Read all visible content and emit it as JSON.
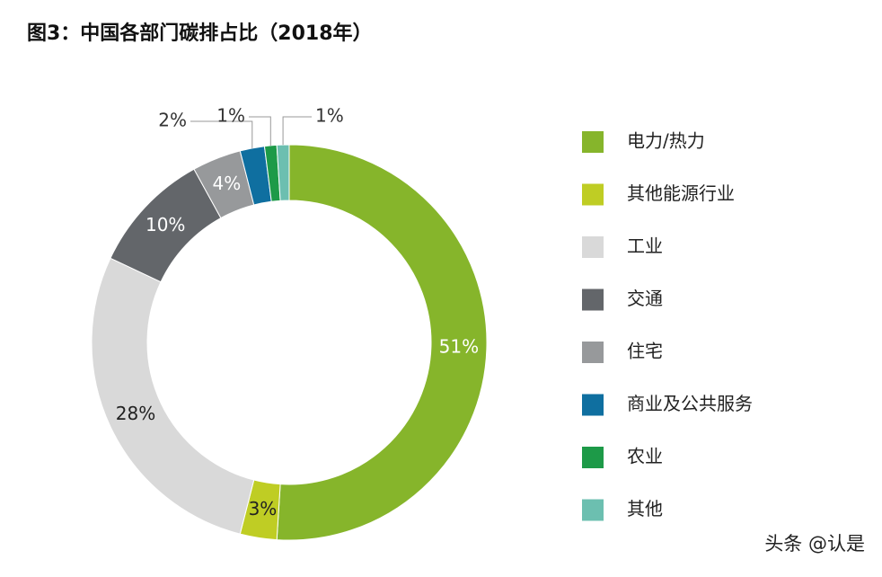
{
  "chart_data": {
    "type": "donut",
    "title": "图3：中国各部门碳排占比（2018年）",
    "categories": [
      "电力/热力",
      "其他能源行业",
      "工业",
      "交通",
      "住宅",
      "商业及公共服务",
      "农业",
      "其他"
    ],
    "values": [
      51,
      3,
      28,
      10,
      4,
      2,
      1,
      1
    ],
    "value_labels": [
      "51%",
      "3%",
      "28%",
      "10%",
      "4%",
      "2%",
      "1%",
      "1%"
    ],
    "colors": [
      "#86b52b",
      "#bfcd24",
      "#d9d9d9",
      "#63666a",
      "#97999b",
      "#0f6fa0",
      "#1d9a48",
      "#6cbfb0"
    ],
    "legend": "right"
  },
  "watermark": "头条 @认是"
}
